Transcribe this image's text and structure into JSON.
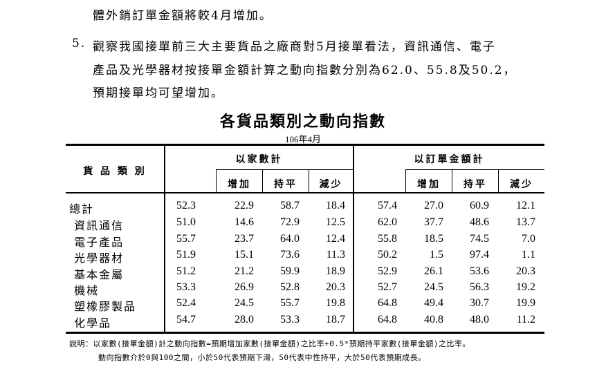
{
  "paragraphs": {
    "line0": "體外銷訂單金額將較4月增加。",
    "item5_number": "5.",
    "item5_line1": "觀察我國接單前三大主要貨品之廠商對5月接單看法，資訊通信、電子",
    "item5_line2": "產品及光學器材按接單金額計算之動向指數分別為62.0、55.8及50.2，",
    "item5_line3": "預期接單均可望增加。"
  },
  "table": {
    "title": "各貨品類別之動向指數",
    "period": "106年4月",
    "category_header": "貨 品 類 別",
    "group_headers": [
      "以家數計",
      "以訂單金額計"
    ],
    "sub_headers": [
      "增加",
      "持平",
      "減少"
    ],
    "rows": [
      {
        "category": "總計",
        "values": [
          "52.3",
          "22.9",
          "58.7",
          "18.4",
          "57.4",
          "27.0",
          "60.9",
          "12.1"
        ]
      },
      {
        "category": " 資訊通信",
        "values": [
          "51.0",
          "14.6",
          "72.9",
          "12.5",
          "62.0",
          "37.7",
          "48.6",
          "13.7"
        ]
      },
      {
        "category": " 電子產品",
        "values": [
          "55.7",
          "23.7",
          "64.0",
          "12.4",
          "55.8",
          "18.5",
          "74.5",
          "7.0"
        ]
      },
      {
        "category": " 光學器材",
        "values": [
          "51.9",
          "15.1",
          "73.6",
          "11.3",
          "50.2",
          "1.5",
          "97.4",
          "1.1"
        ]
      },
      {
        "category": " 基本金屬",
        "values": [
          "51.2",
          "21.2",
          "59.9",
          "18.9",
          "52.9",
          "26.1",
          "53.6",
          "20.3"
        ]
      },
      {
        "category": " 機械",
        "values": [
          "53.3",
          "26.9",
          "52.8",
          "20.3",
          "52.7",
          "24.5",
          "56.3",
          "19.2"
        ]
      },
      {
        "category": " 塑橡膠製品",
        "values": [
          "52.4",
          "24.5",
          "55.7",
          "19.8",
          "64.8",
          "49.4",
          "30.7",
          "19.9"
        ]
      },
      {
        "category": " 化學品",
        "values": [
          "54.7",
          "28.0",
          "53.3",
          "18.7",
          "64.8",
          "40.8",
          "48.0",
          "11.2"
        ]
      }
    ],
    "note_line1": "說明：以家數(接單金額)計之動向指數=預期增加家數(接單金額)之比率+0.5*預期持平家數(接單金額)之比率。",
    "note_line2": "動向指數介於0與100之間，小於50代表預期下滑，50代表中性持平，大於50代表預期成長。"
  }
}
